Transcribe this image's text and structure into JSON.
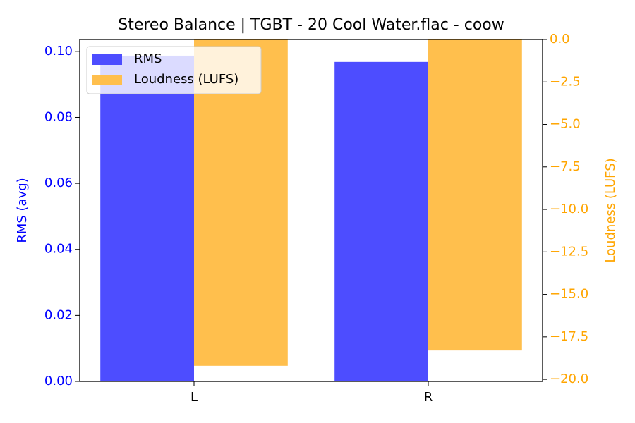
{
  "chart_data": {
    "type": "bar",
    "title": "Stereo Balance | TGBT - 20 Cool Water.flac - coow",
    "categories": [
      "L",
      "R"
    ],
    "series": [
      {
        "name": "RMS",
        "color": "#4d4dff",
        "values": [
          0.0987,
          0.0968
        ]
      },
      {
        "name": "Loudness (LUFS)",
        "color": "#ffbf4d",
        "values": [
          -19.2,
          -18.3
        ],
        "axis": "y2"
      }
    ],
    "ylabel": "RMS (avg)",
    "y2label": "Loudness (LUFS)",
    "ylabel_color": "#0000ff",
    "y2label_color": "#ffa500",
    "ylim": [
      0,
      0.1036
    ],
    "yticks": [
      {
        "value": 0,
        "label": "0.00"
      },
      {
        "value": 0.02,
        "label": "0.02"
      },
      {
        "value": 0.04,
        "label": "0.04"
      },
      {
        "value": 0.06,
        "label": "0.06"
      },
      {
        "value": 0.08,
        "label": "0.08"
      },
      {
        "value": 0.1,
        "label": "0.10"
      }
    ],
    "y2lim": [
      -20.12,
      0
    ],
    "y2ticks": [
      {
        "value": 0,
        "label": "0.0"
      },
      {
        "value": -2.5,
        "label": "−2.5"
      },
      {
        "value": -5,
        "label": "−5.0"
      },
      {
        "value": -7.5,
        "label": "−7.5"
      },
      {
        "value": -10,
        "label": "−10.0"
      },
      {
        "value": -12.5,
        "label": "−12.5"
      },
      {
        "value": -15,
        "label": "−15.0"
      },
      {
        "value": -17.5,
        "label": "−17.5"
      },
      {
        "value": -20,
        "label": "−20.0"
      }
    ],
    "legend": "upper left"
  }
}
